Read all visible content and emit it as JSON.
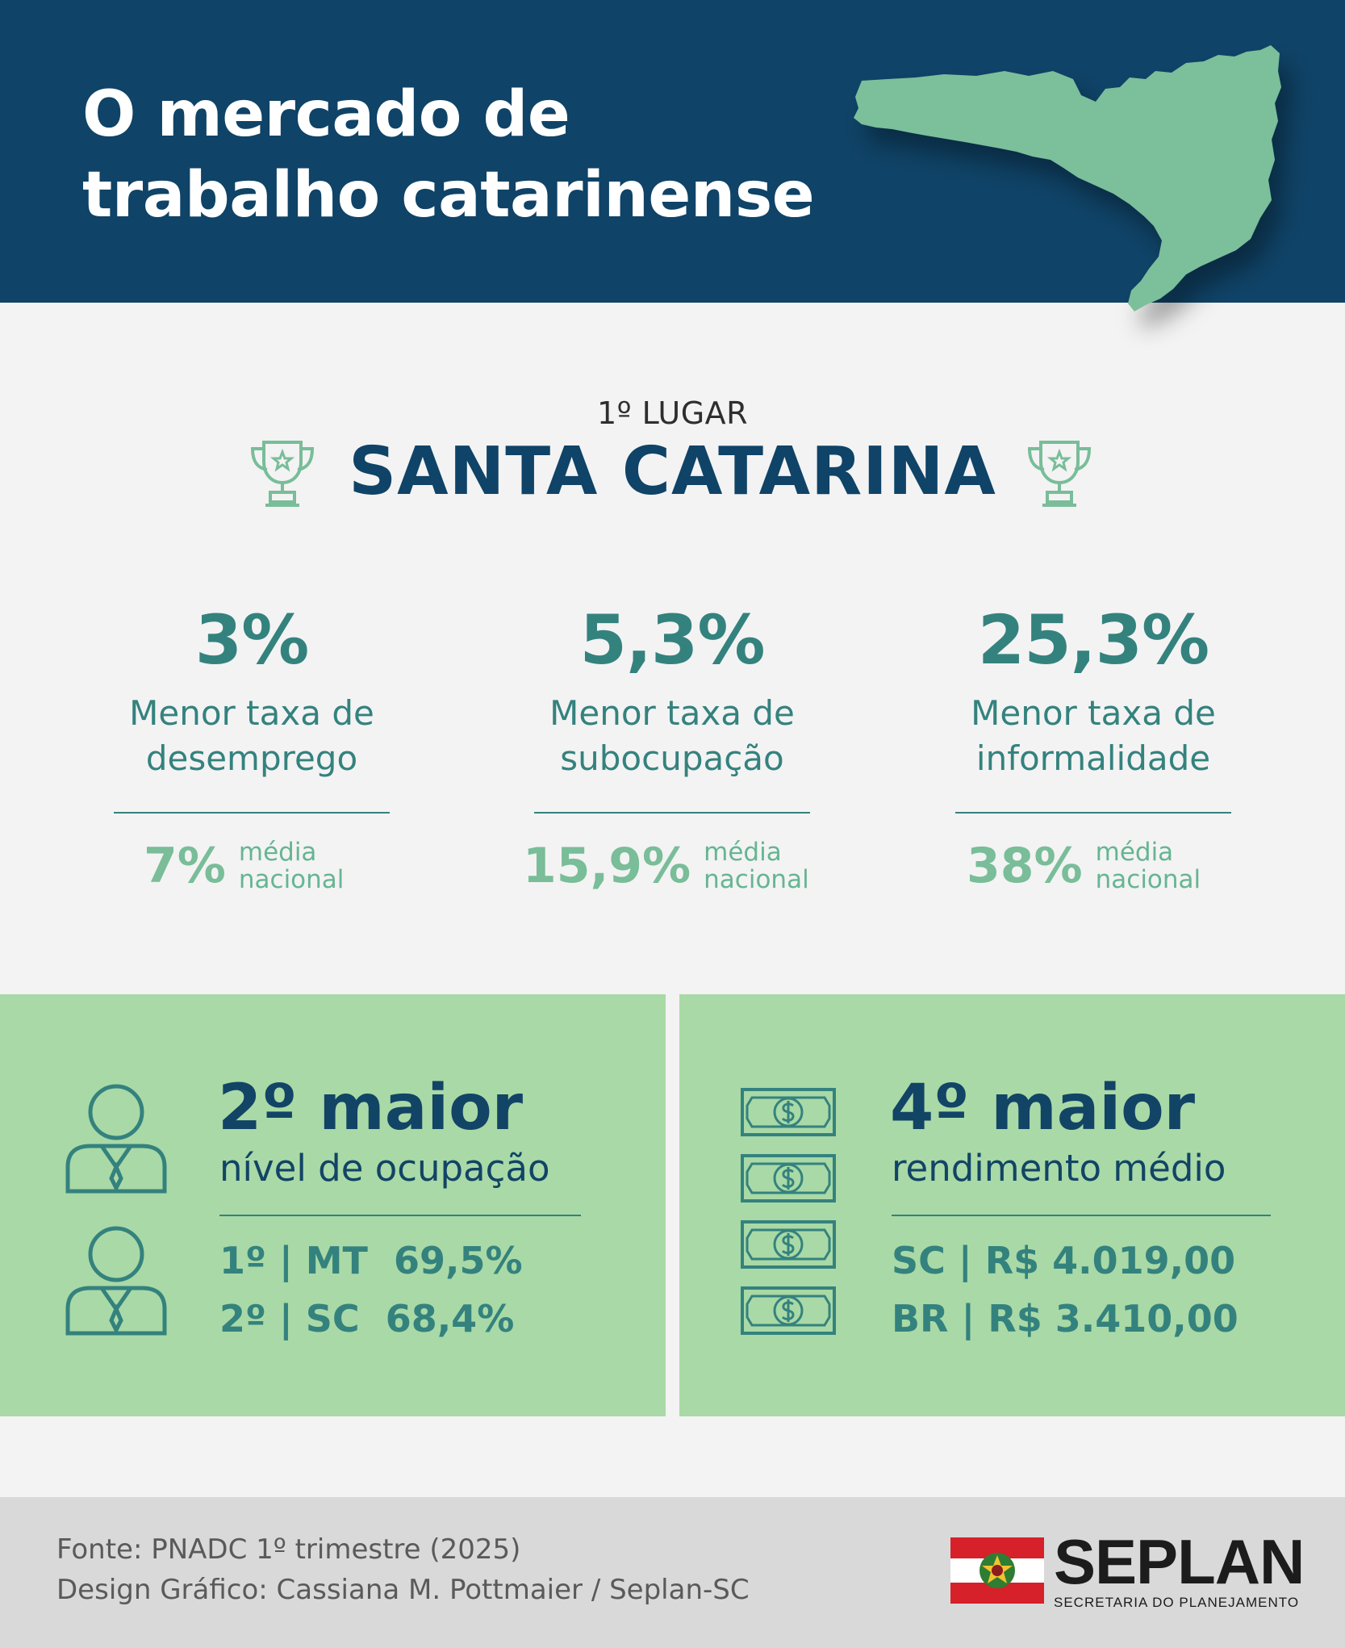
{
  "header": {
    "title_line1": "O mercado de",
    "title_line2": "trabalho catarinense",
    "map_icon": "santa-catarina-map",
    "bg_color": "#0f4367",
    "map_color": "#7bbf9b"
  },
  "ranking": {
    "place": "1º LUGAR",
    "state": "SANTA CATARINA",
    "icon": "trophy-icon"
  },
  "stats": [
    {
      "value": "3%",
      "desc_line1": "Menor taxa de",
      "desc_line2": "desemprego",
      "national_value": "7%",
      "national_label1": "média",
      "national_label2": "nacional"
    },
    {
      "value": "5,3%",
      "desc_line1": "Menor taxa de",
      "desc_line2": "subocupação",
      "national_value": "15,9%",
      "national_label1": "média",
      "national_label2": "nacional"
    },
    {
      "value": "25,3%",
      "desc_line1": "Menor taxa de",
      "desc_line2": "informalidade",
      "national_value": "38%",
      "national_label1": "média",
      "national_label2": "nacional"
    }
  ],
  "occupation": {
    "headline": "2º maior",
    "subtitle": "nível de ocupação",
    "rows": [
      "1º | MT  69,5%",
      "2º | SC  68,4%"
    ],
    "icon": "person-icon"
  },
  "income": {
    "headline": "4º maior",
    "subtitle": "rendimento médio",
    "rows": [
      "SC | R$ 4.019,00",
      "BR | R$ 3.410,00"
    ],
    "icon": "banknote-icon"
  },
  "footer": {
    "source": "Fonte: PNADC 1º trimestre (2025)",
    "design": "Design Gráfico: Cassiana M. Pottmaier / Seplan-SC",
    "logo_name": "SEPLAN",
    "logo_subtitle": "SECRETARIA DO PLANEJAMENTO"
  },
  "colors": {
    "teal": "#34827e",
    "light_green": "#79bd99",
    "panel": "#a9d9a6",
    "navy": "#124466"
  }
}
